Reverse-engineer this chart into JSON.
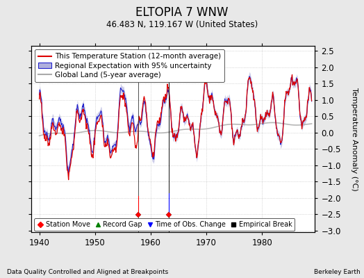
{
  "title": "ELTOPIA 7 WNW",
  "subtitle": "46.483 N, 119.167 W (United States)",
  "ylabel": "Temperature Anomaly (°C)",
  "xlabel_note": "Data Quality Controlled and Aligned at Breakpoints",
  "credit": "Berkeley Earth",
  "xlim": [
    1938.5,
    1989.5
  ],
  "ylim": [
    -3.05,
    2.65
  ],
  "yticks": [
    -3,
    -2.5,
    -2,
    -1.5,
    -1,
    -0.5,
    0,
    0.5,
    1,
    1.5,
    2,
    2.5
  ],
  "xticks": [
    1940,
    1950,
    1960,
    1970,
    1980
  ],
  "station_move_1": 1957.8,
  "station_move_2": 1963.3,
  "vertical_line_1": 1957.8,
  "vertical_line_2": 1963.3,
  "bg_color": "#e8e8e8",
  "plot_bg": "#ffffff",
  "red_line_color": "#dd0000",
  "blue_line_color": "#2222cc",
  "blue_fill_color": "#b0b0dd",
  "gray_line_color": "#aaaaaa",
  "title_fontsize": 12,
  "subtitle_fontsize": 8.5,
  "legend_fontsize": 7.5,
  "tick_fontsize": 8.5,
  "ylabel_fontsize": 8
}
